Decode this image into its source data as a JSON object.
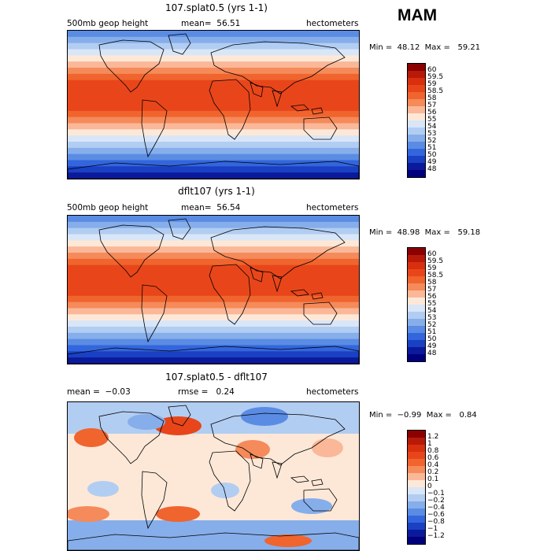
{
  "season": "MAM",
  "panels": [
    {
      "title": "107.splat0.5 (yrs 1-1)",
      "left_label": "500mb geop height",
      "mean_label": "mean=",
      "mean_value": "56.51",
      "right_label": "hectometers",
      "min_label": "Min =",
      "min_value": "48.12",
      "max_label": "Max =",
      "max_value": "59.21",
      "levels": [
        "60",
        "59.5",
        "59",
        "58.5",
        "58",
        "57",
        "56",
        "55",
        "54",
        "53",
        "52",
        "51",
        "50",
        "49",
        "48"
      ],
      "colors": [
        "#8b0000",
        "#b81a0a",
        "#d8300e",
        "#e8461a",
        "#f0642e",
        "#f58a5a",
        "#fab898",
        "#fde8d8",
        "#d8e6f8",
        "#b2cdf2",
        "#86aeea",
        "#5a8ce4",
        "#3366dd",
        "#1a40c4",
        "#0a1a9a",
        "#00007e"
      ]
    },
    {
      "title": "dflt107 (yrs 1-1)",
      "left_label": "500mb geop height",
      "mean_label": "mean=",
      "mean_value": "56.54",
      "right_label": "hectometers",
      "min_label": "Min =",
      "min_value": "48.98",
      "max_label": "Max =",
      "max_value": "59.18",
      "levels": [
        "60",
        "59.5",
        "59",
        "58.5",
        "58",
        "57",
        "56",
        "55",
        "54",
        "53",
        "52",
        "51",
        "50",
        "49",
        "48"
      ],
      "colors": [
        "#8b0000",
        "#b81a0a",
        "#d8300e",
        "#e8461a",
        "#f0642e",
        "#f58a5a",
        "#fab898",
        "#fde8d8",
        "#d8e6f8",
        "#b2cdf2",
        "#86aeea",
        "#5a8ce4",
        "#3366dd",
        "#1a40c4",
        "#0a1a9a",
        "#00007e"
      ]
    },
    {
      "title": "107.splat0.5 - dflt107",
      "mean_label": "mean =",
      "mean_value": "−0.03",
      "rmse_label": "rmse =",
      "rmse_value": "0.24",
      "right_label": "hectometers",
      "min_label": "Min =",
      "min_value": "−0.99",
      "max_label": "Max =",
      "max_value": "0.84",
      "levels": [
        "1.2",
        "1",
        "0.8",
        "0.6",
        "0.4",
        "0.2",
        "0.1",
        "0",
        "−0.1",
        "−0.2",
        "−0.4",
        "−0.6",
        "−0.8",
        "−1",
        "−1.2"
      ],
      "colors": [
        "#8b0000",
        "#b81a0a",
        "#d8300e",
        "#e8461a",
        "#f0642e",
        "#f58a5a",
        "#fab898",
        "#fde8d8",
        "#d8e6f8",
        "#b2cdf2",
        "#86aeea",
        "#5a8ce4",
        "#3366dd",
        "#1a40c4",
        "#0a1a9a",
        "#00007e"
      ]
    }
  ]
}
